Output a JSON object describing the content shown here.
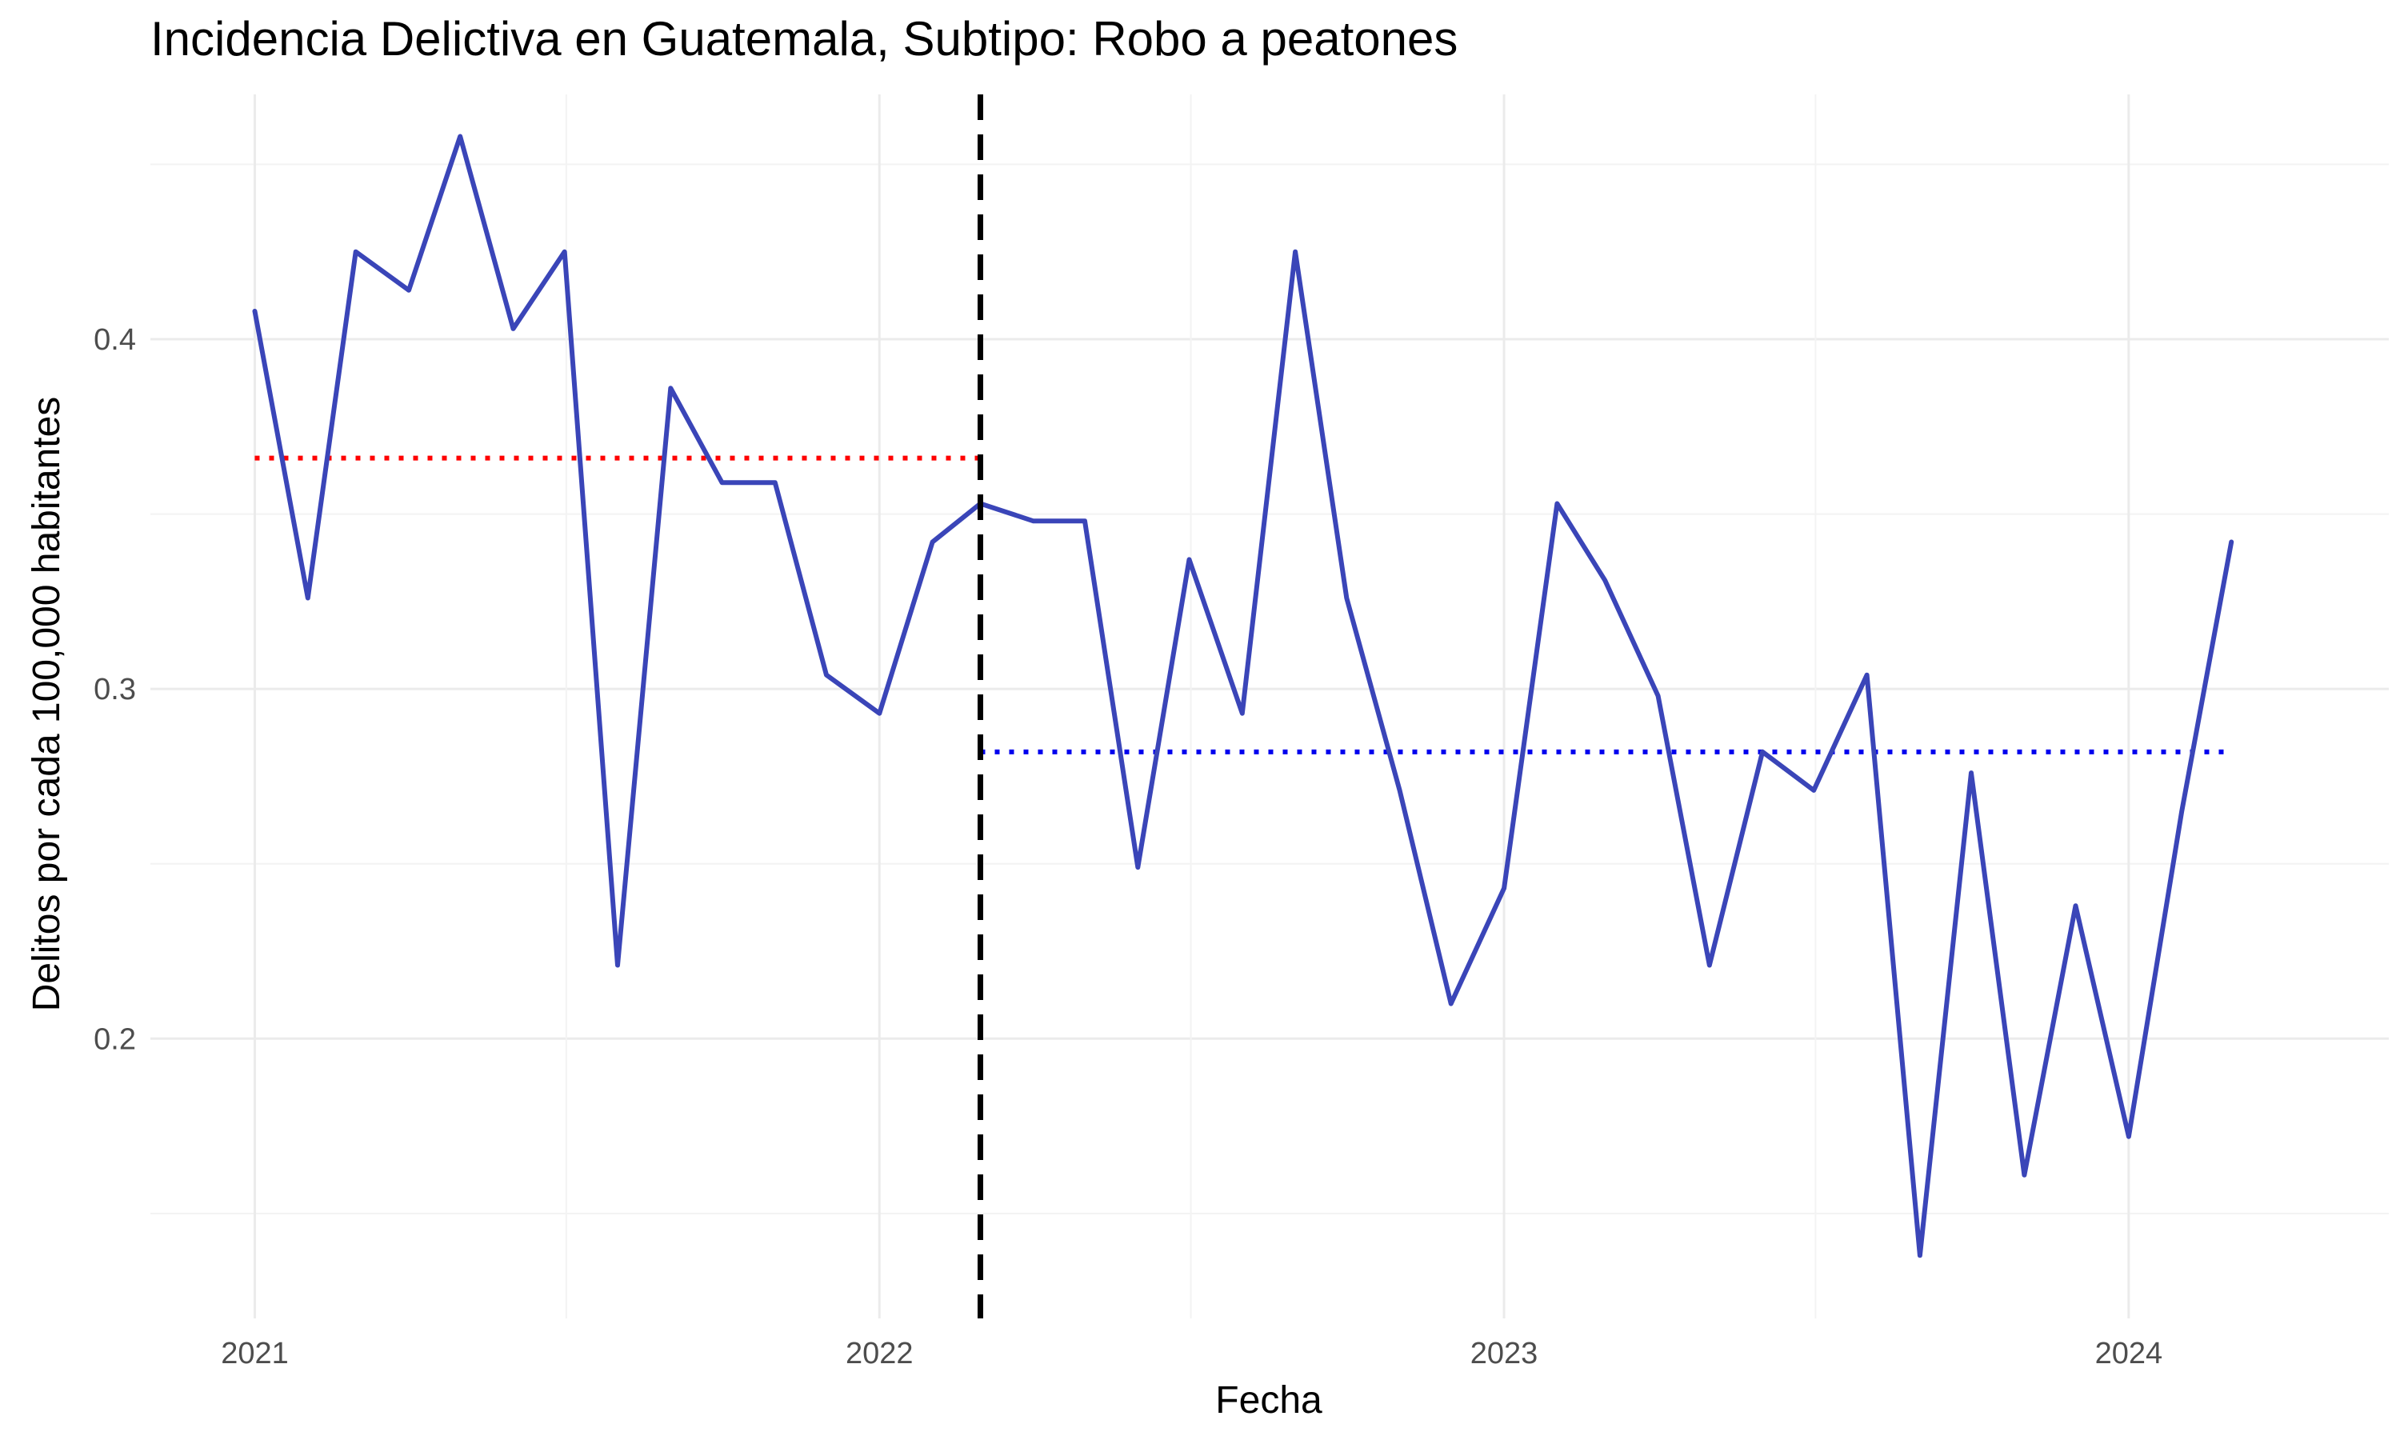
{
  "chart_data": {
    "type": "line",
    "title": "Incidencia Delictiva en Guatemala, Subtipo: Robo a peatones",
    "xlabel": "Fecha",
    "ylabel": "Delitos por cada 100,000 habitantes",
    "x_ticks": [
      "2021",
      "2022",
      "2023",
      "2024"
    ],
    "y_ticks": [
      "0.2",
      "0.3",
      "0.4"
    ],
    "xlim": [
      "2020-11-01",
      "2024-06-01"
    ],
    "ylim": [
      0.12,
      0.47
    ],
    "grid": true,
    "colors": {
      "series": "#3a45b8",
      "mean_before": "#ff0000",
      "mean_after": "#0000ee",
      "intervention": "#000000",
      "grid_major": "#ebebeb",
      "grid_minor": "#f3f3f3"
    },
    "intervention_date": "2022-03-01",
    "mean_before": {
      "value": 0.366,
      "from": "2021-01-01",
      "to": "2022-03-01"
    },
    "mean_after": {
      "value": 0.282,
      "from": "2022-03-01",
      "to": "2024-03-01"
    },
    "series": [
      {
        "x": [
          "2021-01-01",
          "2021-02-01",
          "2021-03-01",
          "2021-04-01",
          "2021-05-01",
          "2021-06-01",
          "2021-07-01",
          "2021-08-01",
          "2021-09-01",
          "2021-10-01",
          "2021-11-01",
          "2021-12-01",
          "2022-01-01",
          "2022-02-01",
          "2022-03-01",
          "2022-04-01",
          "2022-05-01",
          "2022-06-01",
          "2022-07-01",
          "2022-08-01",
          "2022-09-01",
          "2022-10-01",
          "2022-11-01",
          "2022-12-01",
          "2023-01-01",
          "2023-02-01",
          "2023-03-01",
          "2023-04-01",
          "2023-05-01",
          "2023-06-01",
          "2023-07-01",
          "2023-08-01",
          "2023-09-01",
          "2023-10-01",
          "2023-11-01",
          "2023-12-01",
          "2024-01-01",
          "2024-02-01",
          "2024-03-01"
        ],
        "values": [
          0.408,
          0.326,
          0.425,
          0.414,
          0.458,
          0.403,
          0.425,
          0.221,
          0.386,
          0.359,
          0.359,
          0.304,
          0.293,
          0.342,
          0.353,
          0.348,
          0.348,
          0.249,
          0.337,
          0.293,
          0.425,
          0.326,
          0.271,
          0.21,
          0.243,
          0.353,
          0.331,
          0.298,
          0.221,
          0.282,
          0.271,
          0.304,
          0.138,
          0.276,
          0.161,
          0.238,
          0.172,
          0.265,
          0.342
        ]
      }
    ]
  }
}
